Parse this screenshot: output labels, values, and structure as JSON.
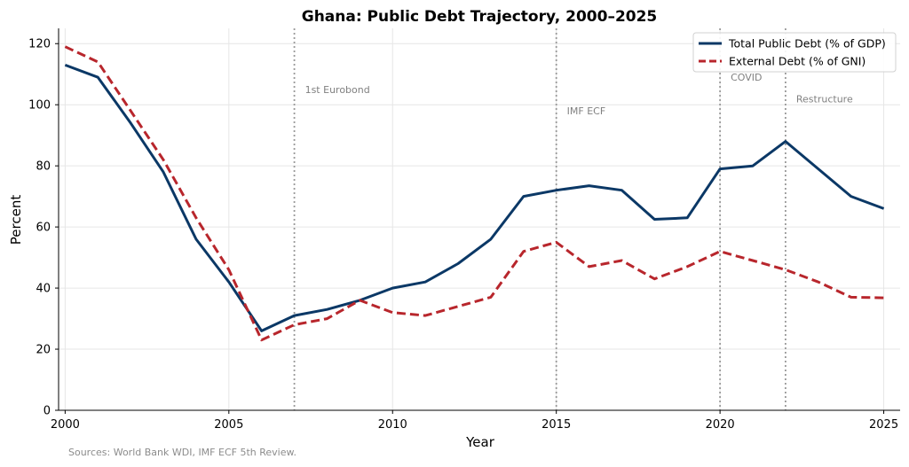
{
  "chart_data": {
    "type": "line",
    "title": "Ghana: Public Debt Trajectory, 2000–2025",
    "xlabel": "Year",
    "ylabel": "Percent",
    "xlim": [
      1999.8,
      2025.5
    ],
    "ylim": [
      0,
      125
    ],
    "xticks": [
      2000,
      2005,
      2010,
      2015,
      2020,
      2025
    ],
    "yticks": [
      0,
      20,
      40,
      60,
      80,
      100,
      120
    ],
    "grid": true,
    "legend_position": "top-right",
    "x": [
      2000,
      2001,
      2002,
      2003,
      2004,
      2005,
      2006,
      2007,
      2008,
      2009,
      2010,
      2011,
      2012,
      2013,
      2014,
      2015,
      2016,
      2017,
      2018,
      2019,
      2020,
      2021,
      2022,
      2023,
      2024,
      2025
    ],
    "series": [
      {
        "name": "Total Public Debt (% of GDP)",
        "color": "#0b3866",
        "style": "solid",
        "values": [
          113,
          109,
          94,
          78,
          56,
          42,
          26,
          31,
          33,
          36,
          40,
          42,
          48,
          56,
          70,
          72,
          73.5,
          72,
          62.5,
          63,
          79,
          80,
          88,
          79,
          70,
          66
        ]
      },
      {
        "name": "External Debt (% of GNI)",
        "color": "#b8262c",
        "style": "dashed",
        "values": [
          119,
          114,
          98,
          82,
          63,
          46,
          23,
          28,
          30,
          36,
          32,
          31,
          34,
          37,
          52,
          55,
          47,
          49,
          43,
          47,
          52,
          49,
          46,
          42,
          37,
          36.8
        ]
      }
    ],
    "annotations": [
      {
        "x": 2007,
        "label": "1st Eurobond",
        "label_y": 105
      },
      {
        "x": 2015,
        "label": "IMF ECF",
        "label_y": 98
      },
      {
        "x": 2020,
        "label": "COVID",
        "label_y": 109
      },
      {
        "x": 2022,
        "label": "Restructure",
        "label_y": 102
      }
    ],
    "source_note": "Sources: World Bank WDI, IMF ECF 5th Review."
  }
}
